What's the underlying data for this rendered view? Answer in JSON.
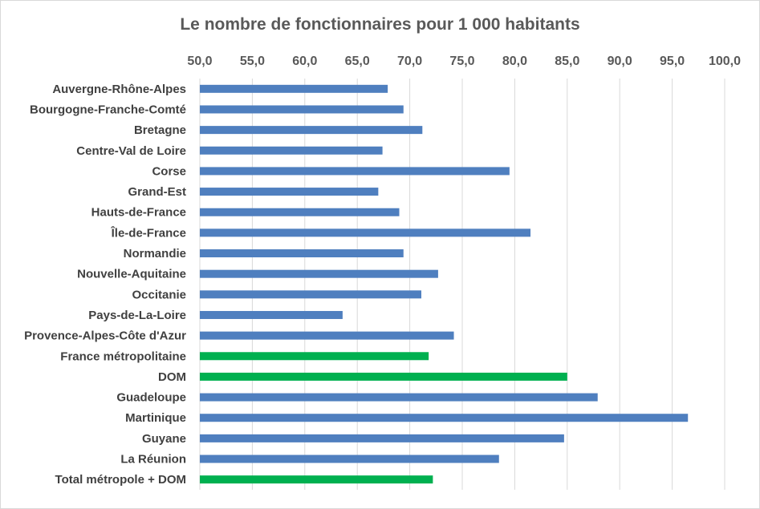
{
  "chart_data": {
    "type": "bar",
    "orientation": "horizontal",
    "title": "Le nombre de fonctionnaires pour 1 000 habitants",
    "xlabel": "",
    "ylabel": "",
    "xlim": [
      50,
      100
    ],
    "x_ticks": [
      "50,0",
      "55,0",
      "60,0",
      "65,0",
      "70,0",
      "75,0",
      "80,0",
      "85,0",
      "90,0",
      "95,0",
      "100,0"
    ],
    "x_axis_position": "top",
    "grid": true,
    "legend": "none",
    "categories": [
      "Auvergne-Rhône-Alpes",
      "Bourgogne-Franche-Comté",
      "Bretagne",
      "Centre-Val de Loire",
      "Corse",
      "Grand-Est",
      "Hauts-de-France",
      "Île-de-France",
      "Normandie",
      "Nouvelle-Aquitaine",
      "Occitanie",
      "Pays-de-La-Loire",
      "Provence-Alpes-Côte d'Azur",
      "France métropolitaine",
      "DOM",
      "Guadeloupe",
      "Martinique",
      "Guyane",
      "La Réunion",
      "Total métropole + DOM"
    ],
    "values": [
      67.9,
      69.4,
      71.2,
      67.4,
      79.5,
      67.0,
      69.0,
      81.5,
      69.4,
      72.7,
      71.1,
      63.6,
      74.2,
      71.8,
      85.0,
      87.9,
      96.5,
      84.7,
      78.5,
      72.2
    ],
    "bar_colors": [
      "#4f7fbf",
      "#4f7fbf",
      "#4f7fbf",
      "#4f7fbf",
      "#4f7fbf",
      "#4f7fbf",
      "#4f7fbf",
      "#4f7fbf",
      "#4f7fbf",
      "#4f7fbf",
      "#4f7fbf",
      "#4f7fbf",
      "#4f7fbf",
      "#00b050",
      "#00b050",
      "#4f7fbf",
      "#4f7fbf",
      "#4f7fbf",
      "#4f7fbf",
      "#00b050"
    ]
  },
  "colors": {
    "gridline": "#d9d9d9",
    "text": "#595959",
    "label": "#404040"
  }
}
